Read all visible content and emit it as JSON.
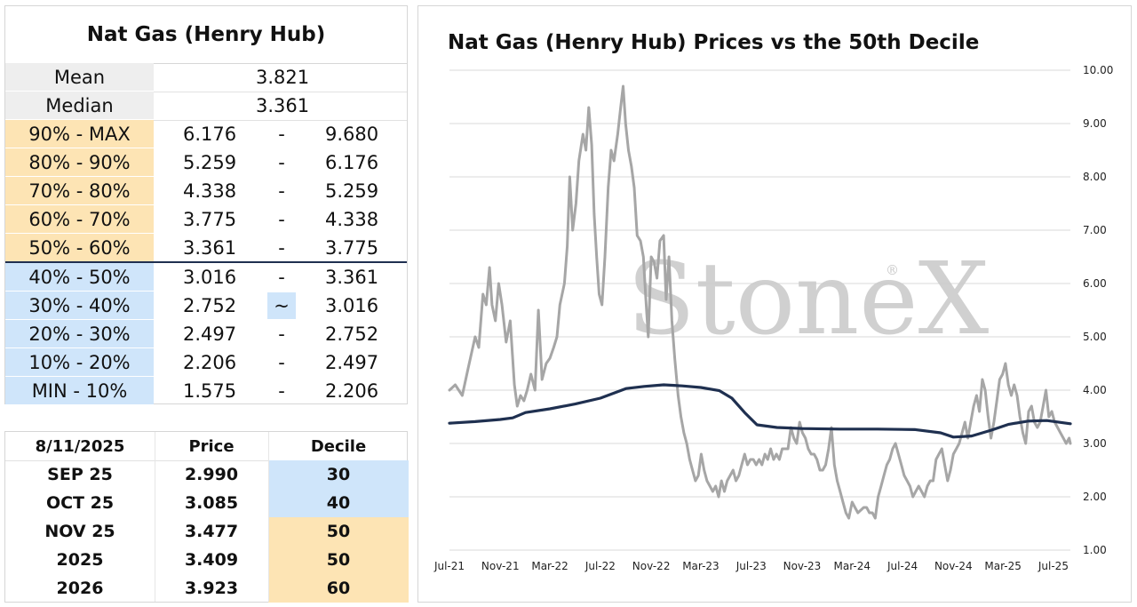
{
  "decile_table": {
    "title": "Nat Gas (Henry Hub)",
    "stats": [
      {
        "label": "Mean",
        "value": "3.821"
      },
      {
        "label": "Median",
        "value": "3.361"
      }
    ],
    "bands": [
      {
        "label": "90% - MAX",
        "low": "6.176",
        "sep": "-",
        "high": "9.680",
        "color": "orange"
      },
      {
        "label": "80% - 90%",
        "low": "5.259",
        "sep": "-",
        "high": "6.176",
        "color": "orange"
      },
      {
        "label": "70% - 80%",
        "low": "4.338",
        "sep": "-",
        "high": "5.259",
        "color": "orange"
      },
      {
        "label": "60% - 70%",
        "low": "3.775",
        "sep": "-",
        "high": "4.338",
        "color": "orange"
      },
      {
        "label": "50% - 60%",
        "low": "3.361",
        "sep": "-",
        "high": "3.775",
        "color": "orange"
      },
      {
        "label": "40% - 50%",
        "low": "3.016",
        "sep": "-",
        "high": "3.361",
        "color": "blue"
      },
      {
        "label": "30% - 40%",
        "low": "2.752",
        "sep": "~",
        "high": "3.016",
        "color": "blue"
      },
      {
        "label": "20% - 30%",
        "low": "2.497",
        "sep": "-",
        "high": "2.752",
        "color": "blue"
      },
      {
        "label": "10% - 20%",
        "low": "2.206",
        "sep": "-",
        "high": "2.497",
        "color": "blue"
      },
      {
        "label": "MIN - 10%",
        "low": "1.575",
        "sep": "-",
        "high": "2.206",
        "color": "blue"
      }
    ]
  },
  "price_table": {
    "headers": [
      "8/11/2025",
      "Price",
      "Decile"
    ],
    "rows": [
      {
        "contract": "SEP 25",
        "price": "2.990",
        "decile": "30",
        "color": "blue"
      },
      {
        "contract": "OCT 25",
        "price": "3.085",
        "decile": "40",
        "color": "blue"
      },
      {
        "contract": "NOV 25",
        "price": "3.477",
        "decile": "50",
        "color": "orange"
      },
      {
        "contract": "2025",
        "price": "3.409",
        "decile": "50",
        "color": "orange"
      },
      {
        "contract": "2026",
        "price": "3.923",
        "decile": "60",
        "color": "orange"
      }
    ]
  },
  "watermark": {
    "text": "StoneX",
    "mark": "®"
  },
  "chart_data": {
    "type": "line",
    "title": "Nat Gas (Henry Hub) Prices vs the 50th Decile",
    "xlabel": "",
    "ylabel": "",
    "xlim": [
      "2021-07-01",
      "2025-08-11"
    ],
    "ylim": [
      1.0,
      10.0
    ],
    "y_axis_side": "right",
    "y_ticks": [
      "1.00",
      "2.00",
      "3.00",
      "4.00",
      "5.00",
      "6.00",
      "7.00",
      "8.00",
      "9.00",
      "10.00"
    ],
    "x_ticks": [
      {
        "date": "2021-07-01",
        "label": "Jul-21"
      },
      {
        "date": "2021-11-01",
        "label": "Nov-21"
      },
      {
        "date": "2022-03-01",
        "label": "Mar-22"
      },
      {
        "date": "2022-07-01",
        "label": "Jul-22"
      },
      {
        "date": "2022-11-01",
        "label": "Nov-22"
      },
      {
        "date": "2023-03-01",
        "label": "Mar-23"
      },
      {
        "date": "2023-07-01",
        "label": "Jul-23"
      },
      {
        "date": "2023-11-01",
        "label": "Nov-23"
      },
      {
        "date": "2024-03-01",
        "label": "Mar-24"
      },
      {
        "date": "2024-07-01",
        "label": "Jul-24"
      },
      {
        "date": "2024-11-01",
        "label": "Nov-24"
      },
      {
        "date": "2025-03-01",
        "label": "Mar-25"
      },
      {
        "date": "2025-07-01",
        "label": "Jul-25"
      }
    ],
    "grid": "horizontal",
    "legend": "none",
    "series": [
      {
        "color": "#a6a6a6",
        "points": [
          [
            "2021-07-01",
            4.0
          ],
          [
            "2021-07-15",
            4.1
          ],
          [
            "2021-08-01",
            3.9
          ],
          [
            "2021-08-15",
            4.4
          ],
          [
            "2021-09-01",
            5.0
          ],
          [
            "2021-09-10",
            4.8
          ],
          [
            "2021-09-20",
            5.8
          ],
          [
            "2021-09-28",
            5.6
          ],
          [
            "2021-10-06",
            6.3
          ],
          [
            "2021-10-12",
            5.6
          ],
          [
            "2021-10-20",
            5.3
          ],
          [
            "2021-10-28",
            6.0
          ],
          [
            "2021-11-05",
            5.6
          ],
          [
            "2021-11-15",
            4.9
          ],
          [
            "2021-11-25",
            5.3
          ],
          [
            "2021-12-05",
            4.1
          ],
          [
            "2021-12-12",
            3.7
          ],
          [
            "2021-12-20",
            3.9
          ],
          [
            "2021-12-28",
            3.8
          ],
          [
            "2022-01-05",
            4.0
          ],
          [
            "2022-01-14",
            4.3
          ],
          [
            "2022-01-24",
            4.0
          ],
          [
            "2022-02-01",
            5.5
          ],
          [
            "2022-02-10",
            4.2
          ],
          [
            "2022-02-20",
            4.5
          ],
          [
            "2022-03-01",
            4.6
          ],
          [
            "2022-03-10",
            4.8
          ],
          [
            "2022-03-18",
            5.0
          ],
          [
            "2022-03-25",
            5.6
          ],
          [
            "2022-04-05",
            6.0
          ],
          [
            "2022-04-12",
            6.7
          ],
          [
            "2022-04-18",
            8.0
          ],
          [
            "2022-04-25",
            7.0
          ],
          [
            "2022-05-03",
            7.5
          ],
          [
            "2022-05-10",
            8.3
          ],
          [
            "2022-05-20",
            8.8
          ],
          [
            "2022-05-27",
            8.5
          ],
          [
            "2022-06-03",
            9.3
          ],
          [
            "2022-06-10",
            8.6
          ],
          [
            "2022-06-16",
            7.3
          ],
          [
            "2022-06-22",
            6.5
          ],
          [
            "2022-06-28",
            5.8
          ],
          [
            "2022-07-05",
            5.6
          ],
          [
            "2022-07-12",
            6.5
          ],
          [
            "2022-07-20",
            7.8
          ],
          [
            "2022-07-27",
            8.5
          ],
          [
            "2022-08-03",
            8.3
          ],
          [
            "2022-08-12",
            8.8
          ],
          [
            "2022-08-19",
            9.3
          ],
          [
            "2022-08-25",
            9.7
          ],
          [
            "2022-08-31",
            9.0
          ],
          [
            "2022-09-07",
            8.5
          ],
          [
            "2022-09-14",
            8.2
          ],
          [
            "2022-09-21",
            7.8
          ],
          [
            "2022-09-28",
            6.9
          ],
          [
            "2022-10-06",
            6.8
          ],
          [
            "2022-10-13",
            6.5
          ],
          [
            "2022-10-19",
            5.7
          ],
          [
            "2022-10-25",
            5.0
          ],
          [
            "2022-11-01",
            6.5
          ],
          [
            "2022-11-08",
            6.4
          ],
          [
            "2022-11-15",
            6.1
          ],
          [
            "2022-11-22",
            6.8
          ],
          [
            "2022-12-01",
            6.9
          ],
          [
            "2022-12-07",
            5.7
          ],
          [
            "2022-12-14",
            6.5
          ],
          [
            "2022-12-21",
            5.3
          ],
          [
            "2022-12-28",
            4.6
          ],
          [
            "2023-01-05",
            3.9
          ],
          [
            "2023-01-12",
            3.5
          ],
          [
            "2023-01-19",
            3.2
          ],
          [
            "2023-01-26",
            3.0
          ],
          [
            "2023-02-02",
            2.7
          ],
          [
            "2023-02-09",
            2.5
          ],
          [
            "2023-02-16",
            2.3
          ],
          [
            "2023-02-23",
            2.4
          ],
          [
            "2023-03-02",
            2.8
          ],
          [
            "2023-03-09",
            2.5
          ],
          [
            "2023-03-16",
            2.3
          ],
          [
            "2023-03-23",
            2.2
          ],
          [
            "2023-03-30",
            2.1
          ],
          [
            "2023-04-06",
            2.2
          ],
          [
            "2023-04-13",
            2.0
          ],
          [
            "2023-04-20",
            2.3
          ],
          [
            "2023-04-27",
            2.1
          ],
          [
            "2023-05-04",
            2.3
          ],
          [
            "2023-05-11",
            2.4
          ],
          [
            "2023-05-18",
            2.5
          ],
          [
            "2023-05-25",
            2.3
          ],
          [
            "2023-06-01",
            2.4
          ],
          [
            "2023-06-08",
            2.6
          ],
          [
            "2023-06-15",
            2.8
          ],
          [
            "2023-06-22",
            2.6
          ],
          [
            "2023-06-29",
            2.7
          ],
          [
            "2023-07-06",
            2.7
          ],
          [
            "2023-07-13",
            2.6
          ],
          [
            "2023-07-20",
            2.7
          ],
          [
            "2023-07-27",
            2.6
          ],
          [
            "2023-08-03",
            2.8
          ],
          [
            "2023-08-10",
            2.7
          ],
          [
            "2023-08-17",
            2.9
          ],
          [
            "2023-08-24",
            2.7
          ],
          [
            "2023-08-31",
            2.8
          ],
          [
            "2023-09-07",
            2.7
          ],
          [
            "2023-09-14",
            2.9
          ],
          [
            "2023-09-21",
            2.9
          ],
          [
            "2023-09-28",
            2.9
          ],
          [
            "2023-10-05",
            3.3
          ],
          [
            "2023-10-12",
            3.1
          ],
          [
            "2023-10-19",
            3.0
          ],
          [
            "2023-10-26",
            3.4
          ],
          [
            "2023-11-02",
            3.2
          ],
          [
            "2023-11-09",
            3.1
          ],
          [
            "2023-11-16",
            2.9
          ],
          [
            "2023-11-23",
            2.8
          ],
          [
            "2023-11-30",
            2.8
          ],
          [
            "2023-12-07",
            2.7
          ],
          [
            "2023-12-14",
            2.5
          ],
          [
            "2023-12-21",
            2.5
          ],
          [
            "2023-12-28",
            2.6
          ],
          [
            "2024-01-04",
            2.9
          ],
          [
            "2024-01-11",
            3.3
          ],
          [
            "2024-01-18",
            2.6
          ],
          [
            "2024-01-25",
            2.3
          ],
          [
            "2024-02-01",
            2.1
          ],
          [
            "2024-02-08",
            1.9
          ],
          [
            "2024-02-15",
            1.7
          ],
          [
            "2024-02-22",
            1.6
          ],
          [
            "2024-03-01",
            1.9
          ],
          [
            "2024-03-08",
            1.8
          ],
          [
            "2024-03-15",
            1.7
          ],
          [
            "2024-03-22",
            1.75
          ],
          [
            "2024-03-29",
            1.8
          ],
          [
            "2024-04-05",
            1.8
          ],
          [
            "2024-04-12",
            1.7
          ],
          [
            "2024-04-19",
            1.7
          ],
          [
            "2024-04-26",
            1.6
          ],
          [
            "2024-05-03",
            2.0
          ],
          [
            "2024-05-10",
            2.2
          ],
          [
            "2024-05-17",
            2.4
          ],
          [
            "2024-05-24",
            2.6
          ],
          [
            "2024-05-31",
            2.7
          ],
          [
            "2024-06-07",
            2.9
          ],
          [
            "2024-06-14",
            3.0
          ],
          [
            "2024-06-21",
            2.8
          ],
          [
            "2024-06-28",
            2.6
          ],
          [
            "2024-07-05",
            2.4
          ],
          [
            "2024-07-12",
            2.3
          ],
          [
            "2024-07-19",
            2.2
          ],
          [
            "2024-07-26",
            2.0
          ],
          [
            "2024-08-02",
            2.1
          ],
          [
            "2024-08-09",
            2.2
          ],
          [
            "2024-08-16",
            2.1
          ],
          [
            "2024-08-23",
            2.0
          ],
          [
            "2024-08-30",
            2.2
          ],
          [
            "2024-09-06",
            2.3
          ],
          [
            "2024-09-13",
            2.3
          ],
          [
            "2024-09-20",
            2.7
          ],
          [
            "2024-09-27",
            2.8
          ],
          [
            "2024-10-04",
            2.9
          ],
          [
            "2024-10-11",
            2.6
          ],
          [
            "2024-10-18",
            2.3
          ],
          [
            "2024-10-25",
            2.5
          ],
          [
            "2024-11-01",
            2.8
          ],
          [
            "2024-11-08",
            2.9
          ],
          [
            "2024-11-15",
            3.0
          ],
          [
            "2024-11-22",
            3.2
          ],
          [
            "2024-11-29",
            3.4
          ],
          [
            "2024-12-06",
            3.1
          ],
          [
            "2024-12-13",
            3.4
          ],
          [
            "2024-12-20",
            3.7
          ],
          [
            "2024-12-27",
            3.9
          ],
          [
            "2025-01-03",
            3.6
          ],
          [
            "2025-01-10",
            4.2
          ],
          [
            "2025-01-17",
            4.0
          ],
          [
            "2025-01-24",
            3.5
          ],
          [
            "2025-01-31",
            3.1
          ],
          [
            "2025-02-07",
            3.4
          ],
          [
            "2025-02-14",
            3.8
          ],
          [
            "2025-02-21",
            4.2
          ],
          [
            "2025-02-28",
            4.3
          ],
          [
            "2025-03-07",
            4.5
          ],
          [
            "2025-03-14",
            4.1
          ],
          [
            "2025-03-21",
            3.9
          ],
          [
            "2025-03-28",
            4.1
          ],
          [
            "2025-04-04",
            3.9
          ],
          [
            "2025-04-11",
            3.5
          ],
          [
            "2025-04-18",
            3.2
          ],
          [
            "2025-04-25",
            3.0
          ],
          [
            "2025-05-02",
            3.6
          ],
          [
            "2025-05-09",
            3.7
          ],
          [
            "2025-05-16",
            3.4
          ],
          [
            "2025-05-23",
            3.3
          ],
          [
            "2025-05-30",
            3.4
          ],
          [
            "2025-06-06",
            3.7
          ],
          [
            "2025-06-13",
            4.0
          ],
          [
            "2025-06-20",
            3.5
          ],
          [
            "2025-06-27",
            3.6
          ],
          [
            "2025-07-04",
            3.4
          ],
          [
            "2025-07-11",
            3.3
          ],
          [
            "2025-07-18",
            3.2
          ],
          [
            "2025-07-25",
            3.1
          ],
          [
            "2025-08-01",
            3.0
          ],
          [
            "2025-08-08",
            3.1
          ],
          [
            "2025-08-11",
            3.0
          ]
        ]
      },
      {
        "color": "#1f3050",
        "points": [
          [
            "2021-07-01",
            3.38
          ],
          [
            "2021-09-01",
            3.41
          ],
          [
            "2021-11-01",
            3.45
          ],
          [
            "2021-12-01",
            3.48
          ],
          [
            "2022-01-01",
            3.58
          ],
          [
            "2022-03-01",
            3.65
          ],
          [
            "2022-05-01",
            3.74
          ],
          [
            "2022-07-01",
            3.85
          ],
          [
            "2022-09-01",
            4.03
          ],
          [
            "2022-10-15",
            4.07
          ],
          [
            "2022-12-01",
            4.1
          ],
          [
            "2023-01-15",
            4.08
          ],
          [
            "2023-03-01",
            4.05
          ],
          [
            "2023-04-15",
            3.99
          ],
          [
            "2023-05-15",
            3.85
          ],
          [
            "2023-06-15",
            3.58
          ],
          [
            "2023-07-15",
            3.35
          ],
          [
            "2023-09-01",
            3.3
          ],
          [
            "2023-11-01",
            3.28
          ],
          [
            "2024-02-01",
            3.27
          ],
          [
            "2024-05-01",
            3.27
          ],
          [
            "2024-08-01",
            3.26
          ],
          [
            "2024-10-01",
            3.2
          ],
          [
            "2024-11-01",
            3.12
          ],
          [
            "2024-12-15",
            3.14
          ],
          [
            "2025-02-01",
            3.25
          ],
          [
            "2025-03-15",
            3.36
          ],
          [
            "2025-05-01",
            3.42
          ],
          [
            "2025-06-15",
            3.43
          ],
          [
            "2025-08-11",
            3.37
          ]
        ]
      }
    ]
  }
}
